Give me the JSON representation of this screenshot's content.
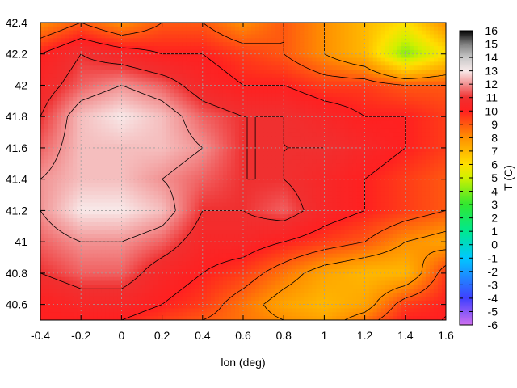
{
  "chart_data": {
    "type": "heatmap",
    "title": "",
    "xlabel": "lon (deg)",
    "ylabel": "",
    "colorbar_label": "T (C)",
    "xlim": [
      -0.4,
      1.6
    ],
    "ylim": [
      40.5,
      42.4
    ],
    "clim": [
      -6,
      16
    ],
    "x_ticks": [
      "-0.4",
      "-0.2",
      "0",
      "0.2",
      "0.4",
      "0.6",
      "0.8",
      "1",
      "1.2",
      "1.4",
      "1.6"
    ],
    "y_ticks": [
      "40.6",
      "40.8",
      "41",
      "41.2",
      "41.4",
      "41.6",
      "41.8",
      "42",
      "42.2",
      "42.4"
    ],
    "colorbar_ticks": [
      "16",
      "15",
      "14",
      "13",
      "12",
      "11",
      "10",
      "9",
      "8",
      "7",
      "6",
      "5",
      "4",
      "3",
      "2",
      "1",
      "0",
      "-1",
      "-2",
      "-3",
      "-4",
      "-5",
      "-6"
    ],
    "grid": true,
    "contours": true,
    "colormap": {
      "stops": [
        {
          "value": -6,
          "color": "#d070f0"
        },
        {
          "value": -4,
          "color": "#4040ff"
        },
        {
          "value": -1,
          "color": "#00c8ff"
        },
        {
          "value": 1,
          "color": "#00e890"
        },
        {
          "value": 3,
          "color": "#30e830"
        },
        {
          "value": 5,
          "color": "#d0f000"
        },
        {
          "value": 6,
          "color": "#ffe000"
        },
        {
          "value": 8,
          "color": "#ff9000"
        },
        {
          "value": 10,
          "color": "#ff2020"
        },
        {
          "value": 11,
          "color": "#f03030"
        },
        {
          "value": 12,
          "color": "#f29292"
        },
        {
          "value": 13,
          "color": "#f8eaea"
        },
        {
          "value": 14,
          "color": "#c8c8c8"
        },
        {
          "value": 15,
          "color": "#808080"
        },
        {
          "value": 16,
          "color": "#000000"
        }
      ]
    },
    "field": {
      "x": [
        -0.4,
        -0.2,
        0.0,
        0.2,
        0.4,
        0.6,
        0.8,
        1.0,
        1.2,
        1.4,
        1.6
      ],
      "y": [
        42.4,
        42.2,
        42.0,
        41.8,
        41.6,
        41.4,
        41.2,
        41.0,
        40.8,
        40.6,
        40.5
      ],
      "values": [
        [
          8,
          9,
          8,
          9,
          9,
          8,
          9,
          8,
          7,
          6,
          8
        ],
        [
          10,
          11,
          10.5,
          10,
          10,
          9.5,
          9,
          8,
          7,
          4,
          6
        ],
        [
          10.5,
          11.5,
          12,
          11.5,
          10.5,
          10,
          10,
          9.5,
          9.5,
          9,
          9
        ],
        [
          11,
          12.5,
          13,
          12.5,
          11.5,
          11,
          11,
          10.5,
          10,
          10,
          9.5
        ],
        [
          11.5,
          12.5,
          12.5,
          12.5,
          12,
          11,
          11,
          11,
          10.5,
          10,
          9.5
        ],
        [
          12,
          12.5,
          12.5,
          12,
          11.5,
          11,
          11,
          10.5,
          10,
          9.5,
          9
        ],
        [
          12,
          13,
          13,
          12.5,
          11,
          11,
          11.5,
          10.5,
          10,
          9.5,
          9
        ],
        [
          11.5,
          12,
          12,
          11.5,
          10.5,
          10.5,
          10,
          9.5,
          9,
          8,
          7.5
        ],
        [
          11,
          11.5,
          11.5,
          10.5,
          10,
          9.5,
          8.5,
          7.5,
          7,
          7,
          9.5
        ],
        [
          10,
          10.5,
          10.5,
          10,
          9.5,
          8.5,
          7.5,
          7,
          7.5,
          9.5,
          10
        ],
        [
          10,
          10,
          10,
          9.5,
          9,
          8.5,
          8,
          7.5,
          8.5,
          10,
          10
        ]
      ]
    },
    "contour_levels": [
      8,
      9,
      10,
      11,
      12
    ]
  }
}
